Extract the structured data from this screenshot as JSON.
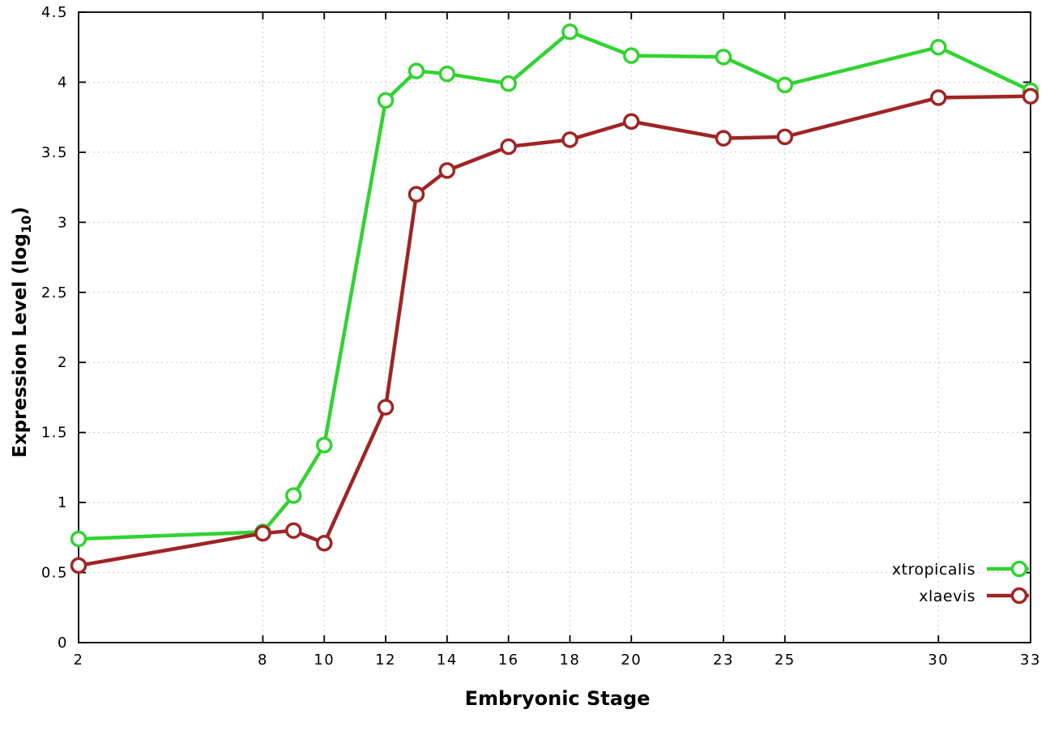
{
  "chart_data": {
    "type": "line",
    "title": "",
    "xlabel": "Embryonic Stage",
    "ylabel": "Expression Level (log10)",
    "ylabel_prefix": "Expression Level (log",
    "ylabel_sub": "10",
    "ylabel_suffix": ")",
    "xlim": [
      2,
      33
    ],
    "ylim": [
      0,
      4.5
    ],
    "x_ticks": [
      2,
      8,
      10,
      12,
      14,
      16,
      18,
      20,
      23,
      25,
      30,
      33
    ],
    "x_tick_labels": [
      "2",
      "8",
      "10",
      "12",
      "14",
      "16",
      "18",
      "20",
      "23",
      "25",
      "30",
      "33"
    ],
    "y_ticks": [
      0,
      0.5,
      1,
      1.5,
      2,
      2.5,
      3,
      3.5,
      4,
      4.5
    ],
    "y_tick_labels": [
      "0",
      "0.5",
      "1",
      "1.5",
      "2",
      "2.5",
      "3",
      "3.5",
      "4",
      "4.5"
    ],
    "grid": true,
    "legend_position": "bottom-right",
    "marker": "open-circle",
    "background_color": "#ffffff",
    "grid_color": "#c9c9c9",
    "x": [
      2,
      8,
      9,
      10,
      12,
      13,
      14,
      16,
      18,
      20,
      23,
      25,
      30,
      33
    ],
    "series": [
      {
        "name": "xtropicalis",
        "color": "#31d331",
        "values": [
          0.74,
          0.79,
          1.05,
          1.41,
          3.87,
          4.08,
          4.06,
          3.99,
          4.36,
          4.19,
          4.18,
          3.98,
          4.25,
          3.94
        ]
      },
      {
        "name": "xlaevis",
        "color": "#a02424",
        "values": [
          0.55,
          0.78,
          0.8,
          0.71,
          1.68,
          3.2,
          3.37,
          3.54,
          3.59,
          3.72,
          3.6,
          3.61,
          3.89,
          3.9
        ]
      }
    ]
  }
}
